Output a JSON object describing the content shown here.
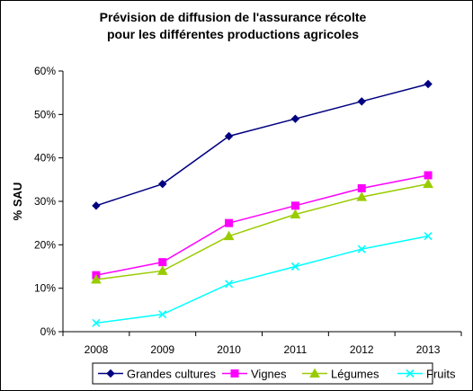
{
  "chart_data": {
    "type": "line",
    "title": [
      "Prévision de diffusion de l'assurance récolte",
      "pour les différentes productions agricoles"
    ],
    "xlabel": "",
    "ylabel": "% SAU",
    "categories": [
      "2008",
      "2009",
      "2010",
      "2011",
      "2012",
      "2013"
    ],
    "ylim": [
      0,
      60
    ],
    "yticks": [
      0,
      10,
      20,
      30,
      40,
      50,
      60
    ],
    "ytick_labels": [
      "0%",
      "10%",
      "20%",
      "30%",
      "40%",
      "50%",
      "60%"
    ],
    "grid": false,
    "legend_position": "bottom",
    "series": [
      {
        "name": "Grandes cultures",
        "values": [
          29,
          34,
          45,
          49,
          53,
          57
        ],
        "color": "#000080",
        "marker": "diamond"
      },
      {
        "name": "Vignes",
        "values": [
          13,
          16,
          25,
          29,
          33,
          36
        ],
        "color": "#FF00FF",
        "marker": "square"
      },
      {
        "name": "Légumes",
        "values": [
          12,
          14,
          22,
          27,
          31,
          34
        ],
        "color": "#99CC00",
        "marker": "triangle"
      },
      {
        "name": "Fruits",
        "values": [
          2,
          4,
          11,
          15,
          19,
          22
        ],
        "color": "#00FFFF",
        "marker": "x"
      }
    ]
  }
}
